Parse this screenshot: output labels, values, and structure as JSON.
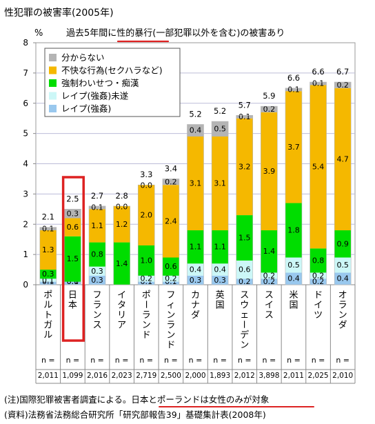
{
  "title": "性犯罪の被害率(2005年)",
  "subtitle": "過去5年間に性的暴行(一部犯罪以外を含む)の被害あり",
  "unit": "%",
  "note": "(注)国際犯罪被害者調査による。日本とポーランドは女性のみが対象",
  "source": "(資料)法務省法務総合研究所「研究部報告39」基礎集計表(2008年)",
  "n_label": "n =",
  "colors": {
    "unknown": "#b4b4b4",
    "harassment": "#f5b800",
    "indecent": "#00dd00",
    "attempted_rape": "#ccf7f7",
    "rape": "#99c8ee",
    "highlight": "#dd2222",
    "grid": "#bcbcd8",
    "axis": "#888888",
    "plot_border": "#9a9a9a"
  },
  "chart_data": {
    "type": "bar",
    "stacked": true,
    "title": "性犯罪の被害率(2005年)",
    "subtitle": "過去5年間に性的暴行(一部犯罪以外を含む)の被害あり",
    "ylabel": "%",
    "ylim": [
      0,
      8
    ],
    "yticks": [
      0,
      1,
      2,
      3,
      4,
      5,
      6,
      7,
      8
    ],
    "grid": true,
    "legend_position": "top-left",
    "categories": [
      "ポルトガル",
      "日本",
      "フランス",
      "イタリア",
      "ポーランド",
      "フィンランド",
      "カナダ",
      "英国",
      "スウェーデン",
      "スイス",
      "米国",
      "ドイツ",
      "オランダ"
    ],
    "totals": [
      "2.1",
      "2.5",
      "2.7",
      "2.8",
      "3.3",
      "3.4",
      "5.2",
      "5.2",
      "5.7",
      "5.9",
      "6.6",
      "6.6",
      "6.7"
    ],
    "n": [
      "2,011",
      "1,099",
      "2,016",
      "2,023",
      "2,719",
      "2,500",
      "2,000",
      "1,893",
      "2,012",
      "3,898",
      "2,011",
      "2,025",
      "2,010"
    ],
    "highlighted_category": "日本",
    "series": [
      {
        "name": "レイプ(強姦)",
        "key": "rape",
        "values": [
          0.1,
          0.1,
          0.3,
          0.0,
          0.1,
          0.1,
          0.3,
          0.3,
          0.2,
          0.2,
          0.4,
          0.2,
          0.4
        ]
      },
      {
        "name": "レイプ(強姦)未遂",
        "key": "attempted_rape",
        "values": [
          0.1,
          0.0,
          0.3,
          0.0,
          0.2,
          0.2,
          0.4,
          0.4,
          0.6,
          0.2,
          0.5,
          0.2,
          0.5
        ]
      },
      {
        "name": "強制わいせつ・痴漢",
        "key": "indecent",
        "values": [
          0.3,
          1.5,
          0.8,
          1.4,
          1.0,
          0.6,
          1.1,
          1.1,
          1.5,
          1.4,
          1.8,
          0.8,
          0.9
        ]
      },
      {
        "name": "不快な行為(セクハラなど)",
        "key": "harassment",
        "values": [
          1.3,
          0.6,
          1.1,
          1.2,
          2.0,
          2.4,
          3.1,
          3.1,
          3.2,
          3.9,
          3.7,
          5.4,
          4.7
        ]
      },
      {
        "name": "分からない",
        "key": "unknown",
        "values": [
          0.1,
          0.3,
          0.1,
          0.0,
          0.0,
          0.2,
          0.4,
          0.5,
          0.1,
          0.2,
          0.1,
          0.1,
          0.2
        ]
      }
    ],
    "legend_order": [
      "unknown",
      "harassment",
      "indecent",
      "attempted_rape",
      "rape"
    ]
  }
}
